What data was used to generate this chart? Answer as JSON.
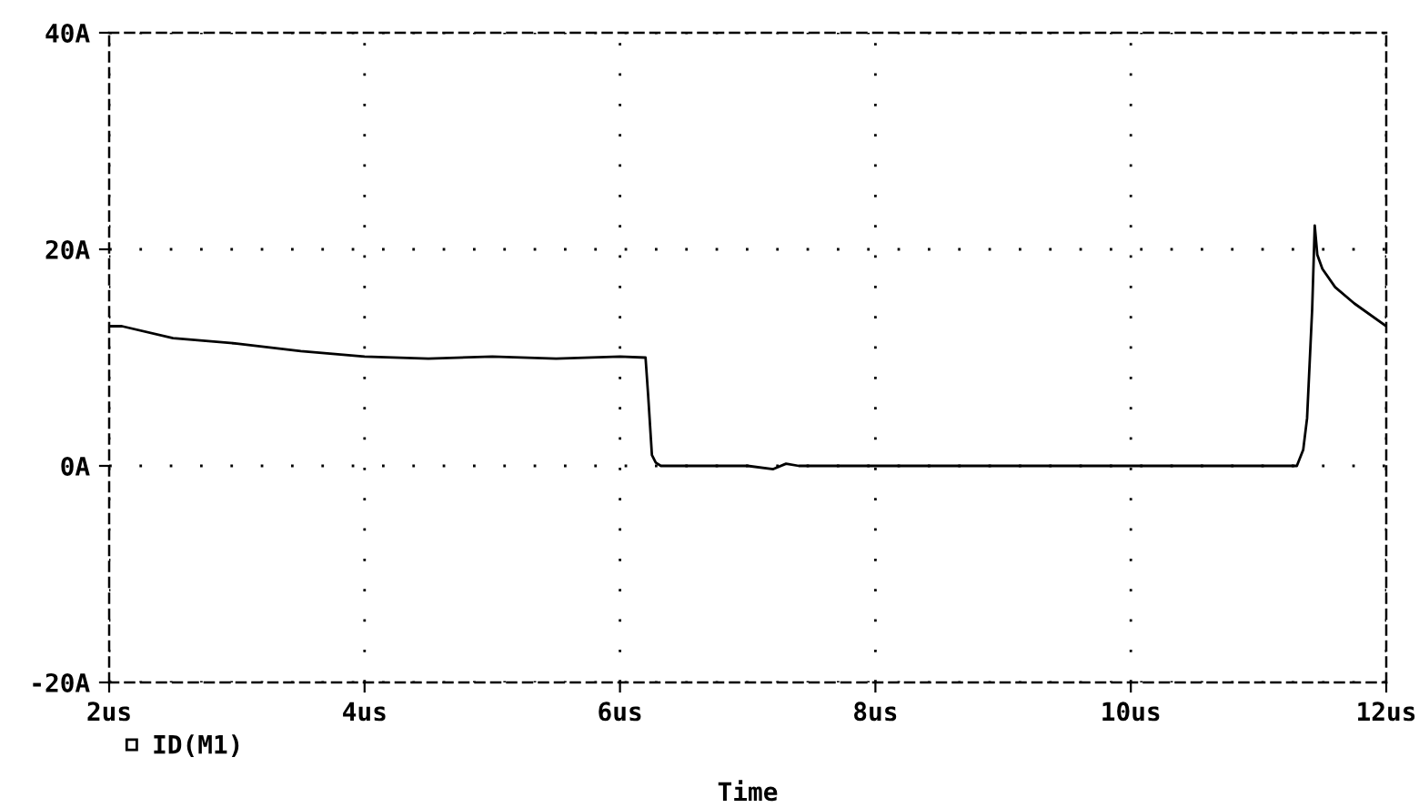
{
  "chart_data": {
    "type": "line",
    "xlabel": "Time",
    "xlim": [
      2,
      12
    ],
    "xticks": [
      {
        "value": 2,
        "label": "2us"
      },
      {
        "value": 4,
        "label": "4us"
      },
      {
        "value": 6,
        "label": "6us"
      },
      {
        "value": 8,
        "label": "8us"
      },
      {
        "value": 10,
        "label": "10us"
      },
      {
        "value": 12,
        "label": "12us"
      }
    ],
    "ylim": [
      -20,
      40
    ],
    "yticks": [
      {
        "value": -20,
        "label": "-20A"
      },
      {
        "value": 0,
        "label": "0A"
      },
      {
        "value": 20,
        "label": "20A"
      },
      {
        "value": 40,
        "label": "40A"
      }
    ],
    "grid": true,
    "legend": "bottom left",
    "line_style": "solid",
    "series": [
      {
        "name": "ID(M1)",
        "color": "#000000",
        "x": [
          2.0,
          2.1,
          2.5,
          3.0,
          3.5,
          4.0,
          4.5,
          5.0,
          5.5,
          6.0,
          6.2,
          6.22,
          6.25,
          6.28,
          6.32,
          7.0,
          7.2,
          7.3,
          7.4,
          11.3,
          11.35,
          11.38,
          11.42,
          11.44,
          11.46,
          11.5,
          11.6,
          11.75,
          12.0
        ],
        "values": [
          12.9,
          12.9,
          11.8,
          11.3,
          10.6,
          10.1,
          9.9,
          10.1,
          9.9,
          10.1,
          10.0,
          6.6,
          1.0,
          0.3,
          0,
          0,
          -0.3,
          0.2,
          0,
          0,
          1.5,
          4.4,
          14.5,
          22.2,
          19.5,
          18.2,
          16.5,
          15.0,
          12.9
        ]
      }
    ]
  }
}
